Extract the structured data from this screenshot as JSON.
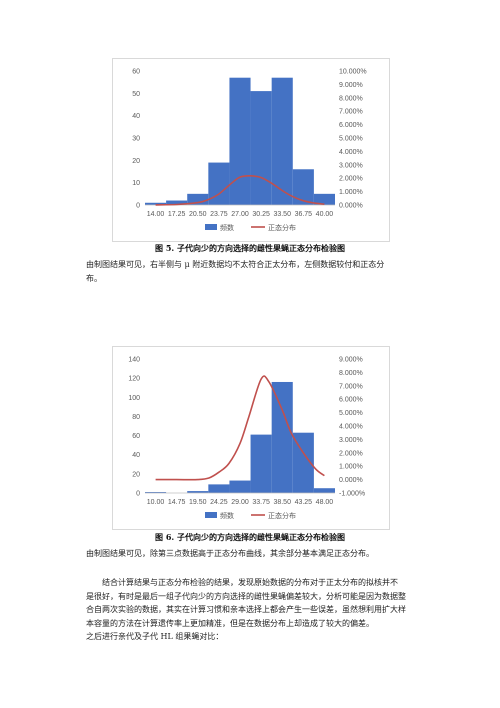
{
  "figures": [
    {
      "caption": "图 5.  子代向少的方向选择的雌性果蝇正态分布检验图",
      "description_lines": [
        "由制图结果可见，右半侧与 μ 附近数据均不太符合正太分布，左侧数据较付和正态分",
        "布。"
      ]
    },
    {
      "caption": "图 6.  子代向少的方向选择的雌性果蝇正态分布检验图",
      "description_lines": [
        "由制图结果可见，除第三点数据高于正态分布曲线，其余部分基本满足正态分布。"
      ]
    }
  ],
  "conclusion_lines": [
    "结合计算结果与正态分布检验的结果，发现原始数据的分布对于正太分布的拟核并不",
    "是很好，有时是最后一组子代向少的方向选择的雌性果蝇偏差较大，分析可能是因为数据整",
    "合自两次实验的数据，其实在计算习惯和亲本选择上都会产生一些误差，虽然想利用扩大样",
    "本容量的方法在计算遗传率上更加精准，但是在数据分布上却造成了较大的偏差。",
    "之后进行亲代及子代 HL 组果蝇对比："
  ],
  "chart_data": [
    {
      "type": "bar",
      "categories": [
        "14.00",
        "17.25",
        "20.50",
        "23.75",
        "27.00",
        "30.25",
        "33.50",
        "36.75",
        "40.00"
      ],
      "series": [
        {
          "name": "频数",
          "type": "bar",
          "axis": "left",
          "color": "#4472c4",
          "values": [
            1,
            2,
            5,
            19,
            57,
            51,
            57,
            16,
            5
          ]
        },
        {
          "name": "正态分布",
          "type": "line",
          "axis": "right",
          "color": "#c0504d",
          "x": [
            14.0,
            17.25,
            20.5,
            22.0,
            23.75,
            25.5,
            27.0,
            28.6,
            30.25,
            32.0,
            33.5,
            35.0,
            36.75,
            38.5,
            40.0
          ],
          "values": [
            0.0001,
            0.0004,
            0.0018,
            0.0038,
            0.0082,
            0.0155,
            0.0208,
            0.0218,
            0.0205,
            0.0158,
            0.0108,
            0.0066,
            0.0032,
            0.0014,
            0.0006
          ]
        }
      ],
      "ylim": [
        0,
        60
      ],
      "yticks": [
        0,
        10,
        20,
        30,
        40,
        50,
        60
      ],
      "y2lim": [
        0,
        0.1
      ],
      "y2ticks": [
        "0.000%",
        "1.000%",
        "2.000%",
        "3.000%",
        "4.000%",
        "5.000%",
        "6.000%",
        "7.000%",
        "8.000%",
        "9.000%",
        "10.000%"
      ],
      "legend": {
        "position": "bottom",
        "entries": [
          "频数",
          "正态分布"
        ]
      },
      "grid": false
    },
    {
      "type": "bar",
      "categories": [
        "10.00",
        "14.75",
        "19.50",
        "24.25",
        "29.00",
        "33.75",
        "38.50",
        "43.25",
        "48.00"
      ],
      "series": [
        {
          "name": "频数",
          "type": "bar",
          "axis": "left",
          "color": "#4472c4",
          "values": [
            1,
            0,
            2,
            9,
            13,
            61,
            116,
            63,
            5
          ]
        },
        {
          "name": "正态分布",
          "type": "line",
          "axis": "right",
          "color": "#c0504d",
          "x": [
            10.0,
            14.75,
            19.5,
            22.0,
            24.25,
            26.5,
            29.0,
            31.0,
            33.75,
            35.5,
            38.5,
            40.5,
            43.25,
            46.0,
            48.0
          ],
          "values": [
            0.0,
            0.0,
            0.0,
            0.0012,
            0.0055,
            0.012,
            0.027,
            0.047,
            0.075,
            0.073,
            0.052,
            0.035,
            0.02,
            0.008,
            0.003
          ]
        }
      ],
      "ylim": [
        0,
        140
      ],
      "yticks": [
        0,
        20,
        40,
        60,
        80,
        100,
        120,
        140
      ],
      "y2lim": [
        -0.01,
        0.09
      ],
      "y2ticks": [
        "-1.000%",
        "0.000%",
        "1.000%",
        "2.000%",
        "3.000%",
        "4.000%",
        "5.000%",
        "6.000%",
        "7.000%",
        "8.000%",
        "9.000%"
      ],
      "legend": {
        "position": "bottom",
        "entries": [
          "频数",
          "正态分布"
        ]
      },
      "grid": false
    }
  ]
}
